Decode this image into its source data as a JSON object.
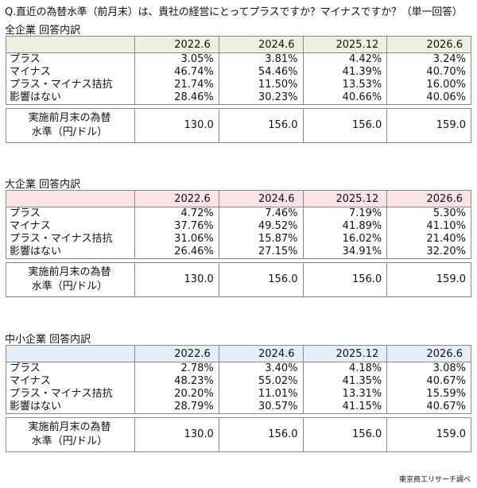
{
  "question": "Q.直近の為替水準（前月末）は、貴社の経営にとってプラスですか？マイナスですか？（単一回答）",
  "columns": [
    "2022.6",
    "2024.6",
    "2025.12",
    "2026.6"
  ],
  "rate_label_line1": "実施前月末の為替",
  "rate_label_line2": "水準（円/ドル）",
  "source": "東京商工リサーチ調べ",
  "header_colors": {
    "all": "#eaf3e0",
    "large": "#fbe3e6",
    "sme": "#e3eef8"
  },
  "sections": [
    {
      "title": "全企業 回答内訳",
      "rows": [
        {
          "label": "プラス",
          "values": [
            "3.05%",
            "3.81%",
            "4.42%",
            "3.24%"
          ]
        },
        {
          "label": "マイナス",
          "values": [
            "46.74%",
            "54.46%",
            "41.39%",
            "40.70%"
          ]
        },
        {
          "label": "プラス・マイナス拮抗",
          "values": [
            "21.74%",
            "11.50%",
            "13.53%",
            "16.00%"
          ]
        },
        {
          "label": "影響はない",
          "values": [
            "28.46%",
            "30.23%",
            "40.66%",
            "40.06%"
          ]
        }
      ],
      "rates": [
        "130.0",
        "156.0",
        "156.0",
        "159.0"
      ]
    },
    {
      "title": "大企業 回答内訳",
      "rows": [
        {
          "label": "プラス",
          "values": [
            "4.72%",
            "7.46%",
            "7.19%",
            "5.30%"
          ]
        },
        {
          "label": "マイナス",
          "values": [
            "37.76%",
            "49.52%",
            "41.89%",
            "41.10%"
          ]
        },
        {
          "label": "プラス・マイナス拮抗",
          "values": [
            "31.06%",
            "15.87%",
            "16.02%",
            "21.40%"
          ]
        },
        {
          "label": "影響はない",
          "values": [
            "26.46%",
            "27.15%",
            "34.91%",
            "32.20%"
          ]
        }
      ],
      "rates": [
        "130.0",
        "156.0",
        "156.0",
        "159.0"
      ]
    },
    {
      "title": "中小企業 回答内訳",
      "rows": [
        {
          "label": "プラス",
          "values": [
            "2.78%",
            "3.40%",
            "4.18%",
            "3.08%"
          ]
        },
        {
          "label": "マイナス",
          "values": [
            "48.23%",
            "55.02%",
            "41.35%",
            "40.67%"
          ]
        },
        {
          "label": "プラス・マイナス拮抗",
          "values": [
            "20.20%",
            "11.01%",
            "13.31%",
            "15.59%"
          ]
        },
        {
          "label": "影響はない",
          "values": [
            "28.79%",
            "30.57%",
            "41.15%",
            "40.67%"
          ]
        }
      ],
      "rates": [
        "130.0",
        "156.0",
        "156.0",
        "159.0"
      ]
    }
  ]
}
